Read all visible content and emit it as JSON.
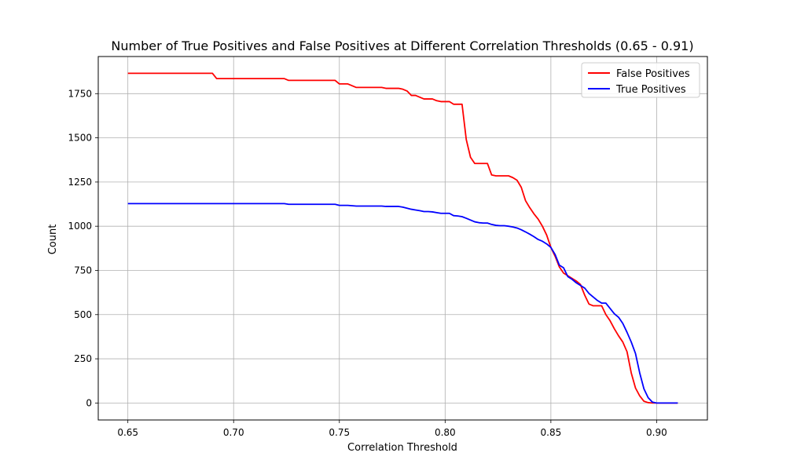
{
  "chart_data": {
    "type": "line",
    "title": "Number of True Positives and False Positives at Different Correlation Thresholds (0.65 - 0.91)",
    "xlabel": "Correlation Threshold",
    "ylabel": "Count",
    "xlim": [
      0.636,
      0.924
    ],
    "ylim": [
      -96,
      1960
    ],
    "xticks": [
      0.65,
      0.7,
      0.75,
      0.8,
      0.85,
      0.9
    ],
    "xtick_labels": [
      "0.65",
      "0.70",
      "0.75",
      "0.80",
      "0.85",
      "0.90"
    ],
    "yticks": [
      0,
      250,
      500,
      750,
      1000,
      1250,
      1500,
      1750
    ],
    "ytick_labels": [
      "0",
      "250",
      "500",
      "750",
      "1000",
      "1250",
      "1500",
      "1750"
    ],
    "grid": true,
    "legend_position": "top-right",
    "series": [
      {
        "name": "False Positives",
        "color": "#ff0000",
        "x": [
          0.65,
          0.66,
          0.67,
          0.68,
          0.688,
          0.69,
          0.692,
          0.7,
          0.71,
          0.72,
          0.724,
          0.726,
          0.73,
          0.74,
          0.748,
          0.75,
          0.754,
          0.758,
          0.76,
          0.77,
          0.772,
          0.774,
          0.778,
          0.78,
          0.782,
          0.784,
          0.786,
          0.788,
          0.79,
          0.792,
          0.794,
          0.796,
          0.798,
          0.8,
          0.802,
          0.804,
          0.806,
          0.808,
          0.81,
          0.812,
          0.814,
          0.816,
          0.818,
          0.82,
          0.822,
          0.824,
          0.826,
          0.828,
          0.83,
          0.832,
          0.834,
          0.836,
          0.838,
          0.84,
          0.842,
          0.844,
          0.846,
          0.848,
          0.85,
          0.852,
          0.854,
          0.856,
          0.858,
          0.86,
          0.862,
          0.864,
          0.866,
          0.868,
          0.87,
          0.872,
          0.874,
          0.876,
          0.878,
          0.88,
          0.882,
          0.884,
          0.886,
          0.888,
          0.89,
          0.892,
          0.894,
          0.896,
          0.898,
          0.9,
          0.902,
          0.904,
          0.906,
          0.908,
          0.91
        ],
        "y": [
          1865,
          1865,
          1865,
          1865,
          1865,
          1865,
          1835,
          1835,
          1835,
          1835,
          1835,
          1825,
          1825,
          1825,
          1825,
          1805,
          1805,
          1785,
          1785,
          1785,
          1780,
          1780,
          1780,
          1775,
          1765,
          1740,
          1740,
          1730,
          1720,
          1720,
          1720,
          1710,
          1705,
          1705,
          1705,
          1690,
          1690,
          1690,
          1490,
          1390,
          1355,
          1355,
          1355,
          1355,
          1290,
          1285,
          1285,
          1285,
          1285,
          1275,
          1260,
          1220,
          1145,
          1105,
          1070,
          1040,
          1000,
          950,
          880,
          830,
          770,
          735,
          720,
          705,
          690,
          670,
          610,
          560,
          550,
          550,
          550,
          500,
          465,
          420,
          380,
          345,
          290,
          170,
          85,
          40,
          10,
          2,
          0,
          0,
          0,
          0,
          0,
          0,
          0
        ],
        "values": [
          1865,
          1865,
          1865,
          1865,
          1865,
          1865,
          1835,
          1835,
          1835,
          1835,
          1835,
          1825,
          1825,
          1825,
          1825,
          1805,
          1805,
          1785,
          1785,
          1785,
          1780,
          1780,
          1780,
          1775,
          1765,
          1740,
          1740,
          1730,
          1720,
          1720,
          1720,
          1710,
          1705,
          1705,
          1705,
          1690,
          1690,
          1690,
          1490,
          1390,
          1355,
          1355,
          1355,
          1355,
          1290,
          1285,
          1285,
          1285,
          1285,
          1275,
          1260,
          1220,
          1145,
          1105,
          1070,
          1040,
          1000,
          950,
          880,
          830,
          770,
          735,
          720,
          705,
          690,
          670,
          610,
          560,
          550,
          550,
          550,
          500,
          465,
          420,
          380,
          345,
          290,
          170,
          85,
          40,
          10,
          2,
          0,
          0,
          0,
          0,
          0,
          0,
          0
        ]
      },
      {
        "name": "True Positives",
        "color": "#0000ff",
        "x": [
          0.65,
          0.66,
          0.67,
          0.68,
          0.69,
          0.7,
          0.71,
          0.72,
          0.724,
          0.726,
          0.73,
          0.74,
          0.748,
          0.75,
          0.754,
          0.758,
          0.76,
          0.77,
          0.772,
          0.774,
          0.778,
          0.78,
          0.782,
          0.784,
          0.786,
          0.788,
          0.79,
          0.792,
          0.794,
          0.796,
          0.798,
          0.8,
          0.802,
          0.804,
          0.806,
          0.808,
          0.81,
          0.812,
          0.814,
          0.816,
          0.818,
          0.82,
          0.822,
          0.824,
          0.826,
          0.828,
          0.83,
          0.832,
          0.834,
          0.836,
          0.838,
          0.84,
          0.842,
          0.844,
          0.846,
          0.848,
          0.85,
          0.852,
          0.854,
          0.856,
          0.858,
          0.86,
          0.862,
          0.864,
          0.866,
          0.868,
          0.87,
          0.872,
          0.874,
          0.876,
          0.878,
          0.88,
          0.882,
          0.884,
          0.886,
          0.888,
          0.89,
          0.892,
          0.894,
          0.896,
          0.898,
          0.9,
          0.902,
          0.904,
          0.906,
          0.908,
          0.91
        ],
        "y": [
          1128,
          1128,
          1128,
          1128,
          1128,
          1128,
          1128,
          1128,
          1128,
          1124,
          1124,
          1124,
          1124,
          1118,
          1118,
          1114,
          1114,
          1114,
          1112,
          1112,
          1112,
          1108,
          1102,
          1096,
          1092,
          1088,
          1083,
          1083,
          1081,
          1077,
          1073,
          1073,
          1073,
          1060,
          1058,
          1054,
          1045,
          1035,
          1025,
          1020,
          1018,
          1018,
          1010,
          1005,
          1003,
          1003,
          1000,
          996,
          990,
          980,
          968,
          955,
          941,
          925,
          915,
          900,
          880,
          840,
          780,
          765,
          715,
          700,
          680,
          665,
          650,
          620,
          600,
          580,
          565,
          565,
          535,
          505,
          485,
          450,
          400,
          345,
          280,
          170,
          80,
          30,
          5,
          0,
          0,
          0,
          0,
          0,
          0
        ],
        "values": [
          1128,
          1128,
          1128,
          1128,
          1128,
          1128,
          1128,
          1128,
          1128,
          1124,
          1124,
          1124,
          1124,
          1118,
          1118,
          1114,
          1114,
          1114,
          1112,
          1112,
          1112,
          1108,
          1102,
          1096,
          1092,
          1088,
          1083,
          1083,
          1081,
          1077,
          1073,
          1073,
          1073,
          1060,
          1058,
          1054,
          1045,
          1035,
          1025,
          1020,
          1018,
          1018,
          1010,
          1005,
          1003,
          1003,
          1000,
          996,
          990,
          980,
          968,
          955,
          941,
          925,
          915,
          900,
          880,
          840,
          780,
          765,
          715,
          700,
          680,
          665,
          650,
          620,
          600,
          580,
          565,
          565,
          535,
          505,
          485,
          450,
          400,
          345,
          280,
          170,
          80,
          30,
          5,
          0,
          0,
          0,
          0,
          0,
          0
        ]
      }
    ]
  }
}
